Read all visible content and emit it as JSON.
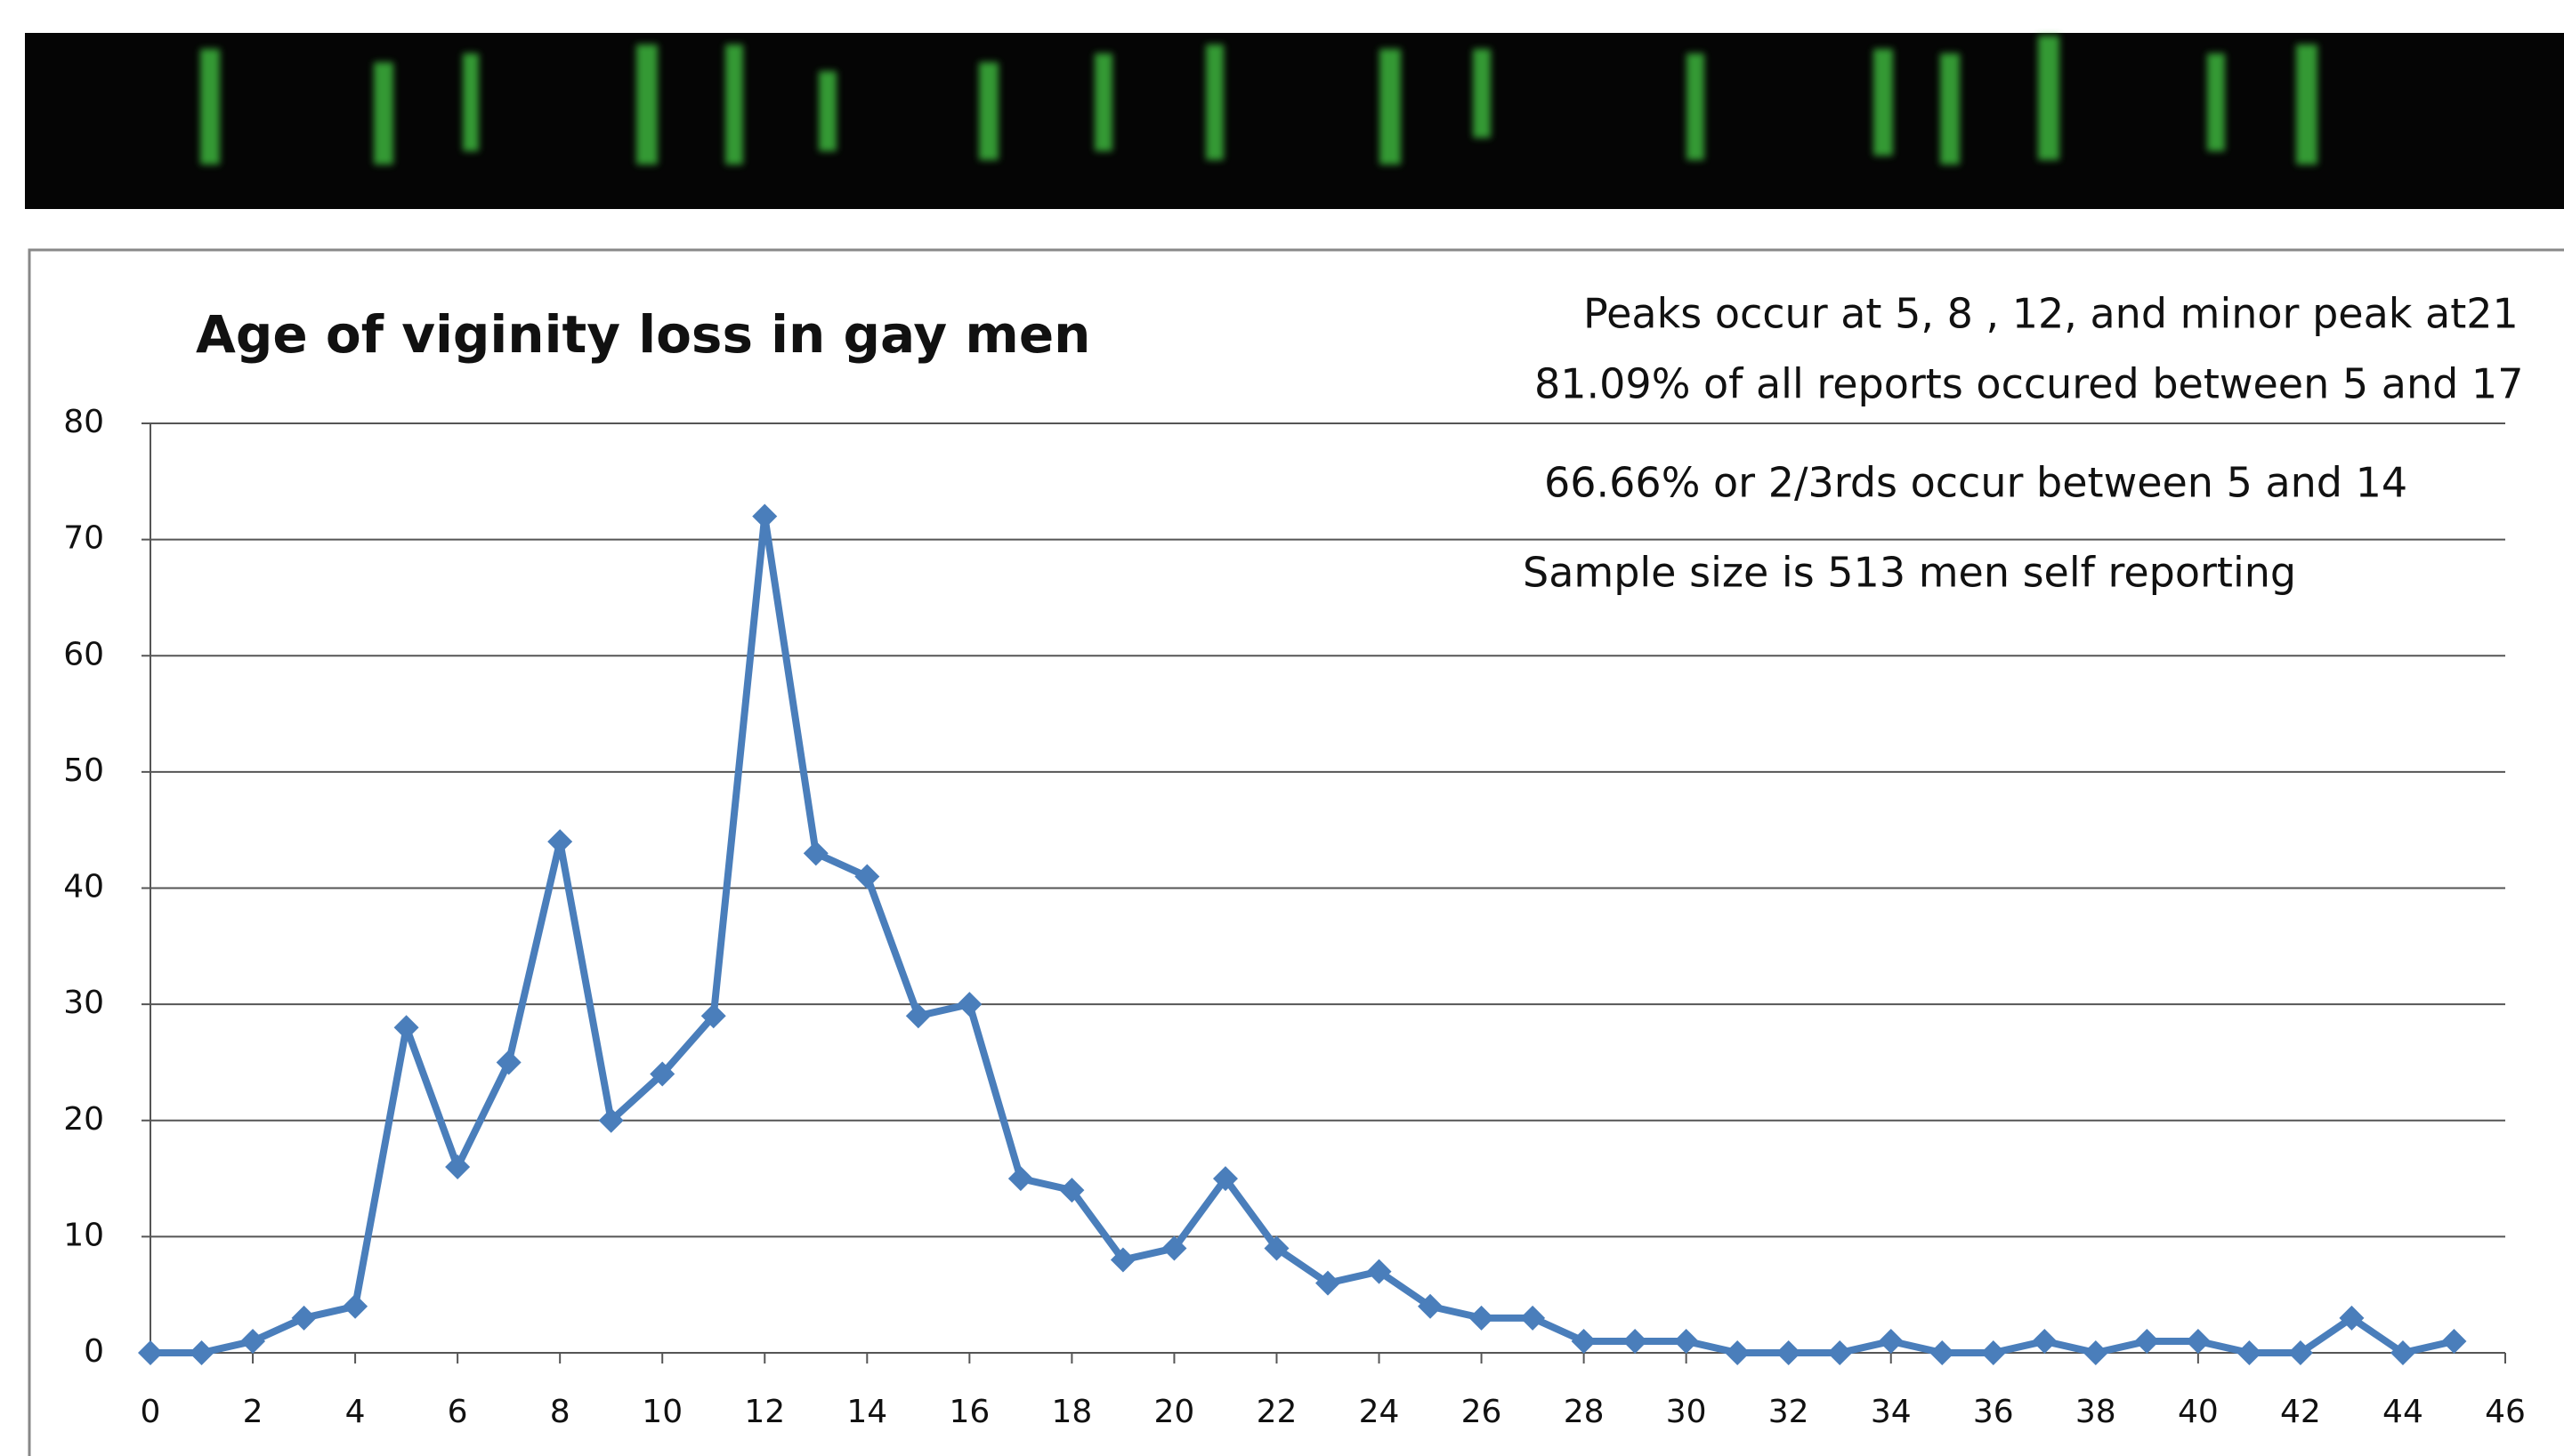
{
  "chart_data": {
    "type": "line",
    "title": "Age of viginity loss in gay men",
    "annotations": [
      "Peaks occur at 5,  8 , 12,  and minor peak at21",
      "81.09% of all reports occured between 5 and 17",
      "66.66% or 2/3rds occur between 5 and 14",
      "Sample size is 513  men self reporting"
    ],
    "x": [
      0,
      1,
      2,
      3,
      4,
      5,
      6,
      7,
      8,
      9,
      10,
      11,
      12,
      13,
      14,
      15,
      16,
      17,
      18,
      19,
      20,
      21,
      22,
      23,
      24,
      25,
      26,
      27,
      28,
      29,
      30,
      31,
      32,
      33,
      34,
      35,
      36,
      37,
      38,
      39,
      40,
      41,
      42,
      43,
      44,
      45
    ],
    "values": [
      0,
      0,
      1,
      3,
      4,
      28,
      16,
      25,
      44,
      20,
      24,
      29,
      72,
      43,
      41,
      29,
      30,
      15,
      14,
      8,
      9,
      15,
      9,
      6,
      7,
      4,
      3,
      3,
      1,
      1,
      1,
      0,
      0,
      0,
      1,
      0,
      0,
      1,
      0,
      1,
      1,
      0,
      0,
      3,
      0,
      1
    ],
    "color": "#4a7ebb",
    "xlim": [
      0,
      46
    ],
    "xticks": [
      0,
      2,
      4,
      6,
      8,
      10,
      12,
      14,
      16,
      18,
      20,
      22,
      24,
      26,
      28,
      30,
      32,
      34,
      36,
      38,
      40,
      42,
      44,
      46
    ],
    "ylim": [
      0,
      80
    ],
    "yticks": [
      0,
      10,
      20,
      30,
      40,
      50,
      60,
      70,
      80
    ],
    "grid": true
  }
}
